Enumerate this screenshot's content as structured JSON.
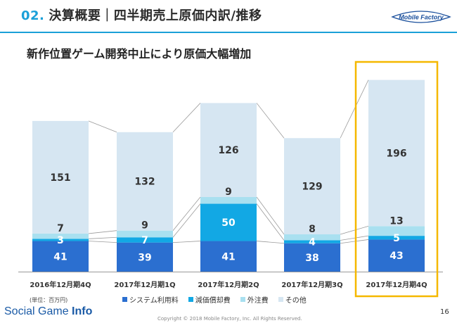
{
  "header": {
    "number": "02.",
    "title": "決算概要｜四半期売上原価内訳/推移"
  },
  "logo_text": "Mobile Factory",
  "subtitle": "新作位置ゲーム開発中止により原価大幅増加",
  "unit_note": "(単位：百万円)",
  "footer": {
    "brand_light": "Social Game ",
    "brand_bold": "Info",
    "copyright": "Copyright © 2018 Mobile Factory, Inc. All Rights Reserved.",
    "page_number": "16"
  },
  "colors": {
    "system": "#2b6fd0",
    "depreciation": "#12a8e4",
    "outsourcing": "#a9e0f0",
    "other": "#d6e6f2",
    "highlight": "#f5b800",
    "accent": "#1aa0d8"
  },
  "chart_data": {
    "type": "bar",
    "stacked": true,
    "categories": [
      "2016年12月期4Q",
      "2017年12月期1Q",
      "2017年12月期2Q",
      "2017年12月期3Q",
      "2017年12月期4Q"
    ],
    "series": [
      {
        "name": "システム利用料",
        "values": [
          41,
          39,
          41,
          38,
          43
        ]
      },
      {
        "name": "減価償却費",
        "values": [
          3,
          7,
          50,
          4,
          5
        ]
      },
      {
        "name": "外注費",
        "values": [
          7,
          9,
          9,
          8,
          13
        ]
      },
      {
        "name": "その他",
        "values": [
          151,
          132,
          126,
          129,
          196
        ]
      }
    ],
    "highlight_category": "2017年12月期4Q",
    "legend_position": "bottom"
  }
}
